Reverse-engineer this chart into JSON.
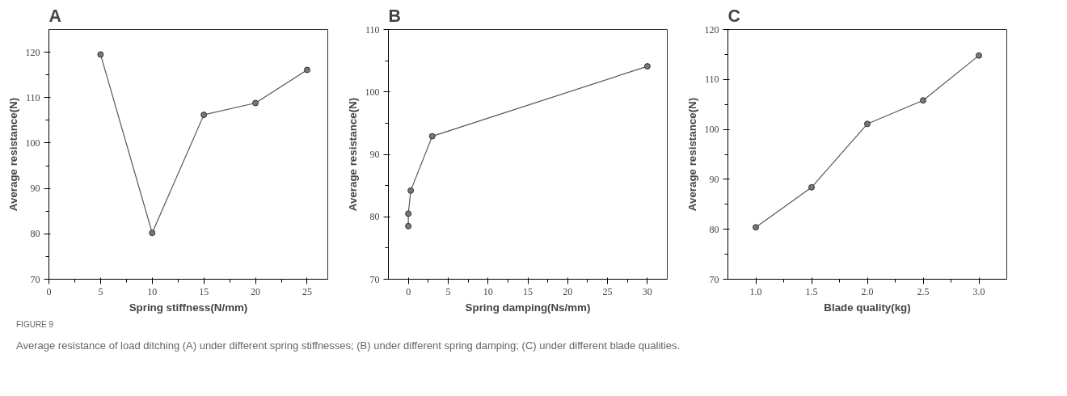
{
  "chart_data": [
    {
      "type": "line",
      "title": "A",
      "xlabel": "Spring stiffness(N/mm)",
      "ylabel": "Average resistance(N)",
      "x": [
        5,
        10,
        15,
        20,
        25
      ],
      "series": [
        {
          "color": "#555555",
          "values": [
            119.5,
            80.2,
            106.2,
            108.8,
            116.1
          ]
        }
      ],
      "xlim": [
        0,
        27
      ],
      "ylim": [
        70,
        125
      ],
      "xticks": [
        0,
        5,
        10,
        15,
        20,
        25
      ],
      "yticks": [
        70,
        80,
        90,
        100,
        110,
        120
      ],
      "marker": "circle",
      "line_style": "solid",
      "annotations": [
        "FIGURE 9",
        "Average resistance of load ditching (A) under different spring stiffnesses; (B) under different spring damping; (C) under different blade qualities."
      ]
    },
    {
      "type": "line",
      "title": "B",
      "xlabel": "Spring damping(Ns/mm)",
      "ylabel": "Average resistance(N)",
      "x": [
        0,
        0,
        0.3,
        3,
        30
      ],
      "series": [
        {
          "color": "#555555",
          "values": [
            78.5,
            80.5,
            84.2,
            92.9,
            104.1
          ]
        }
      ],
      "xlim": [
        -2.5,
        32.5
      ],
      "ylim": [
        70,
        110
      ],
      "xticks": [
        0,
        5,
        10,
        15,
        20,
        25,
        30
      ],
      "yticks": [
        70,
        80,
        90,
        100,
        110
      ],
      "marker": "circle",
      "line_style": "solid"
    },
    {
      "type": "line",
      "title": "C",
      "xlabel": "Blade quality(kg)",
      "ylabel": "Average resistance(N)",
      "x": [
        1.0,
        1.5,
        2.0,
        2.5,
        3.0
      ],
      "series": [
        {
          "color": "#555555",
          "values": [
            80.4,
            88.4,
            101.1,
            105.8,
            114.8
          ]
        }
      ],
      "xlim": [
        0.75,
        3.25
      ],
      "ylim": [
        70,
        120
      ],
      "xticks": [
        {
          "value": 1.0,
          "label": "1.0"
        },
        {
          "value": 1.5,
          "label": "1.5"
        },
        {
          "value": 2.0,
          "label": "2.0"
        },
        {
          "value": 2.5,
          "label": "2.5"
        },
        {
          "value": 3.0,
          "label": "3.0"
        }
      ],
      "yticks": [
        70,
        80,
        90,
        100,
        110,
        120
      ],
      "marker": "circle",
      "line_style": "solid"
    }
  ]
}
